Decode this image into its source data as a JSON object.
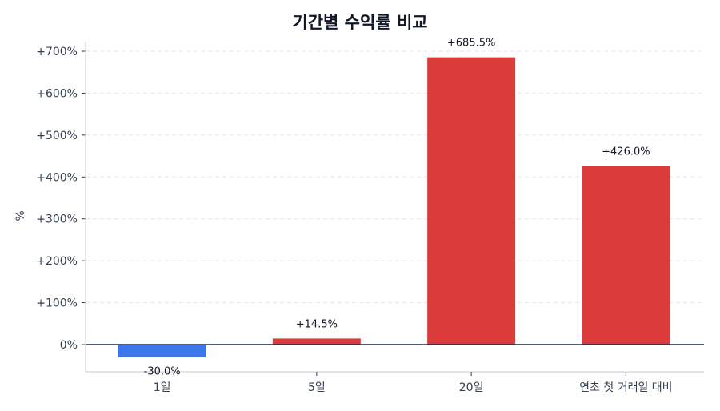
{
  "chart_data": {
    "type": "bar",
    "title": "기간별 수익률 비교",
    "xlabel": "",
    "ylabel": "%",
    "categories": [
      "1일",
      "5일",
      "20일",
      "연초 첫 거래일 대비"
    ],
    "values": [
      -30.0,
      14.5,
      685.5,
      426.0
    ],
    "value_labels": [
      "-30.0%",
      "+14.5%",
      "+685.5%",
      "+426.0%"
    ],
    "bar_colors": [
      "#3b76ea",
      "#dc3b3c",
      "#dc3b3c",
      "#dc3b3c"
    ],
    "positive_color": "#dc3b3c",
    "negative_color": "#3b76ea",
    "yticks": [
      0,
      100,
      200,
      300,
      400,
      500,
      600,
      700
    ],
    "ytick_labels": [
      "0%",
      "+100%",
      "+200%",
      "+300%",
      "+400%",
      "+500%",
      "+600%",
      "+700%"
    ],
    "ylim": [
      -65,
      790
    ],
    "grid": "horizontal dashed",
    "zero_line": true,
    "legend": null
  }
}
